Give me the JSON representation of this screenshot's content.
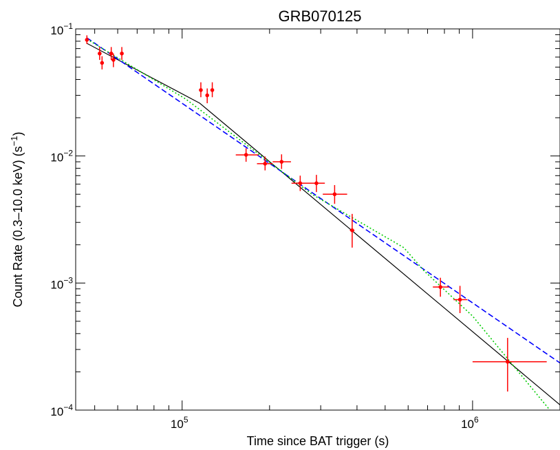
{
  "chart_data": {
    "type": "scatter",
    "title": "GRB070125",
    "xlabel": "Time since BAT trigger (s)",
    "ylabel": "Count Rate (0.3–10.0 keV) (s",
    "ylabel_sup": "−1",
    "ylabel_close": ")",
    "x_scale": "log",
    "y_scale": "log",
    "xlim": [
      43000,
      2000000
    ],
    "ylim": [
      0.0001,
      0.1
    ],
    "x_ticks": [
      {
        "value": 100000,
        "base": "10",
        "exp": "5"
      },
      {
        "value": 1000000,
        "base": "10",
        "exp": "6"
      }
    ],
    "y_ticks": [
      {
        "value": 0.1,
        "base": "10",
        "exp": "−1"
      },
      {
        "value": 0.01,
        "base": "10",
        "exp": "−2"
      },
      {
        "value": 0.001,
        "base": "10",
        "exp": "−3"
      },
      {
        "value": 0.0001,
        "base": "10",
        "exp": "−4"
      }
    ],
    "data_color": "#ff0000",
    "data": [
      {
        "x": 47000,
        "y": 0.082,
        "xlo": 46800,
        "xhi": 47200,
        "ylo": 0.076,
        "yhi": 0.089
      },
      {
        "x": 52000,
        "y": 0.064,
        "xlo": 51800,
        "xhi": 52200,
        "ylo": 0.057,
        "yhi": 0.072
      },
      {
        "x": 53000,
        "y": 0.054,
        "xlo": 52800,
        "xhi": 53200,
        "ylo": 0.048,
        "yhi": 0.061
      },
      {
        "x": 57000,
        "y": 0.064,
        "xlo": 56800,
        "xhi": 57200,
        "ylo": 0.057,
        "yhi": 0.072
      },
      {
        "x": 58000,
        "y": 0.057,
        "xlo": 57800,
        "xhi": 58200,
        "ylo": 0.05,
        "yhi": 0.064
      },
      {
        "x": 62000,
        "y": 0.064,
        "xlo": 61800,
        "xhi": 62200,
        "ylo": 0.057,
        "yhi": 0.072
      },
      {
        "x": 116000,
        "y": 0.033,
        "xlo": 115500,
        "xhi": 116500,
        "ylo": 0.029,
        "yhi": 0.038
      },
      {
        "x": 122000,
        "y": 0.03,
        "xlo": 121500,
        "xhi": 122500,
        "ylo": 0.026,
        "yhi": 0.034
      },
      {
        "x": 127000,
        "y": 0.033,
        "xlo": 126500,
        "xhi": 127500,
        "ylo": 0.029,
        "yhi": 0.038
      },
      {
        "x": 166000,
        "y": 0.0102,
        "xlo": 153000,
        "xhi": 183000,
        "ylo": 0.009,
        "yhi": 0.0115
      },
      {
        "x": 193000,
        "y": 0.0087,
        "xlo": 181000,
        "xhi": 205000,
        "ylo": 0.0077,
        "yhi": 0.0099
      },
      {
        "x": 220000,
        "y": 0.009,
        "xlo": 205000,
        "xhi": 237000,
        "ylo": 0.0079,
        "yhi": 0.0103
      },
      {
        "x": 255000,
        "y": 0.0061,
        "xlo": 238000,
        "xhi": 275000,
        "ylo": 0.0053,
        "yhi": 0.007
      },
      {
        "x": 290000,
        "y": 0.0061,
        "xlo": 270000,
        "xhi": 310000,
        "ylo": 0.0052,
        "yhi": 0.0071
      },
      {
        "x": 335000,
        "y": 0.005,
        "xlo": 305000,
        "xhi": 370000,
        "ylo": 0.0042,
        "yhi": 0.0059
      },
      {
        "x": 385000,
        "y": 0.0026,
        "xlo": 378000,
        "xhi": 392000,
        "ylo": 0.0019,
        "yhi": 0.0035
      },
      {
        "x": 775000,
        "y": 0.00093,
        "xlo": 730000,
        "xhi": 830000,
        "ylo": 0.00078,
        "yhi": 0.0011
      },
      {
        "x": 905000,
        "y": 0.00074,
        "xlo": 860000,
        "xhi": 960000,
        "ylo": 0.00058,
        "yhi": 0.00095
      },
      {
        "x": 1320000,
        "y": 0.00024,
        "xlo": 1000000,
        "xhi": 1800000,
        "ylo": 0.00014,
        "yhi": 0.00037
      }
    ],
    "models": [
      {
        "color": "#000000",
        "style": "solid",
        "points": [
          [
            47000,
            0.077
          ],
          [
            115000,
            0.026
          ],
          [
            2000000,
            0.00011
          ]
        ]
      },
      {
        "color": "#0000ff",
        "style": "dashed",
        "points": [
          [
            47000,
            0.085
          ],
          [
            2000000,
            0.000235
          ]
        ]
      },
      {
        "color": "#00cc00",
        "style": "dotted",
        "points": [
          [
            47000,
            0.083
          ],
          [
            103000,
            0.028
          ],
          [
            280000,
            0.005
          ],
          [
            580000,
            0.0019
          ],
          [
            680000,
            0.00125
          ],
          [
            1000000,
            0.00055
          ],
          [
            2000000,
            8e-05
          ]
        ]
      }
    ]
  }
}
